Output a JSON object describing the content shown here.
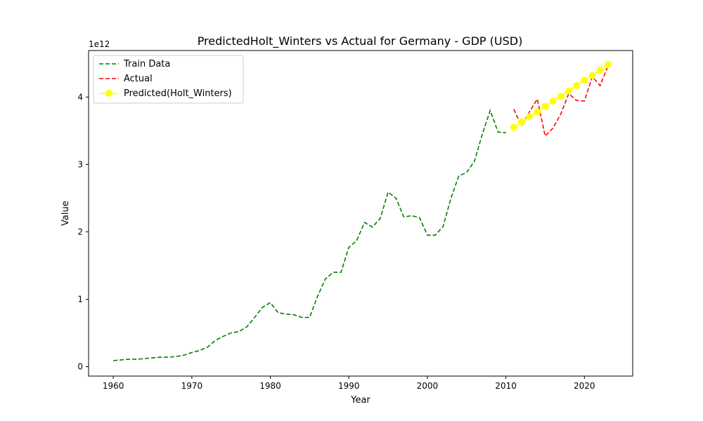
{
  "chart_data": {
    "type": "line",
    "title": "PredictedHolt_Winters vs Actual for Germany - GDP (USD)",
    "xlabel": "Year",
    "ylabel": "Value",
    "y_offset_label": "1e12",
    "xlim": [
      1956.85,
      2026.15
    ],
    "ylim": [
      -0.14,
      4.69
    ],
    "x_ticks": [
      1960,
      1970,
      1980,
      1990,
      2000,
      2010,
      2020
    ],
    "y_ticks": [
      0,
      1,
      2,
      3,
      4
    ],
    "legend_position": "top-left",
    "series": [
      {
        "name": "Train Data",
        "color": "#008000",
        "style": "dashed",
        "marker": "none",
        "x": [
          1960,
          1961,
          1962,
          1963,
          1964,
          1965,
          1966,
          1967,
          1968,
          1969,
          1970,
          1971,
          1972,
          1973,
          1974,
          1975,
          1976,
          1977,
          1978,
          1979,
          1980,
          1981,
          1982,
          1983,
          1984,
          1985,
          1986,
          1987,
          1988,
          1989,
          1990,
          1991,
          1992,
          1993,
          1994,
          1995,
          1996,
          1997,
          1998,
          1999,
          2000,
          2001,
          2002,
          2003,
          2004,
          2005,
          2006,
          2007,
          2008,
          2009,
          2010
        ],
        "y": [
          0.09,
          0.1,
          0.11,
          0.11,
          0.12,
          0.13,
          0.14,
          0.14,
          0.15,
          0.17,
          0.21,
          0.24,
          0.29,
          0.39,
          0.45,
          0.5,
          0.52,
          0.59,
          0.73,
          0.88,
          0.95,
          0.8,
          0.78,
          0.77,
          0.73,
          0.73,
          1.04,
          1.3,
          1.4,
          1.4,
          1.77,
          1.87,
          2.14,
          2.07,
          2.2,
          2.59,
          2.5,
          2.22,
          2.24,
          2.21,
          1.95,
          1.95,
          2.08,
          2.5,
          2.83,
          2.88,
          3.05,
          3.45,
          3.8,
          3.48,
          3.47
        ]
      },
      {
        "name": "Actual",
        "color": "#ff0000",
        "style": "dashed",
        "marker": "none",
        "x": [
          2011,
          2012,
          2013,
          2014,
          2015,
          2016,
          2017,
          2018,
          2019,
          2020,
          2021,
          2022,
          2023
        ],
        "y": [
          3.82,
          3.57,
          3.78,
          3.97,
          3.42,
          3.54,
          3.75,
          4.05,
          3.95,
          3.94,
          4.3,
          4.17,
          4.46
        ]
      },
      {
        "name": "Predicted(Holt_Winters)",
        "color": "#ffff00",
        "style": "solid",
        "marker": "circle",
        "x": [
          2011,
          2012,
          2013,
          2014,
          2015,
          2016,
          2017,
          2018,
          2019,
          2020,
          2021,
          2022,
          2023
        ],
        "y": [
          3.55,
          3.63,
          3.71,
          3.78,
          3.86,
          3.94,
          4.01,
          4.09,
          4.17,
          4.25,
          4.32,
          4.4,
          4.48
        ]
      }
    ]
  }
}
